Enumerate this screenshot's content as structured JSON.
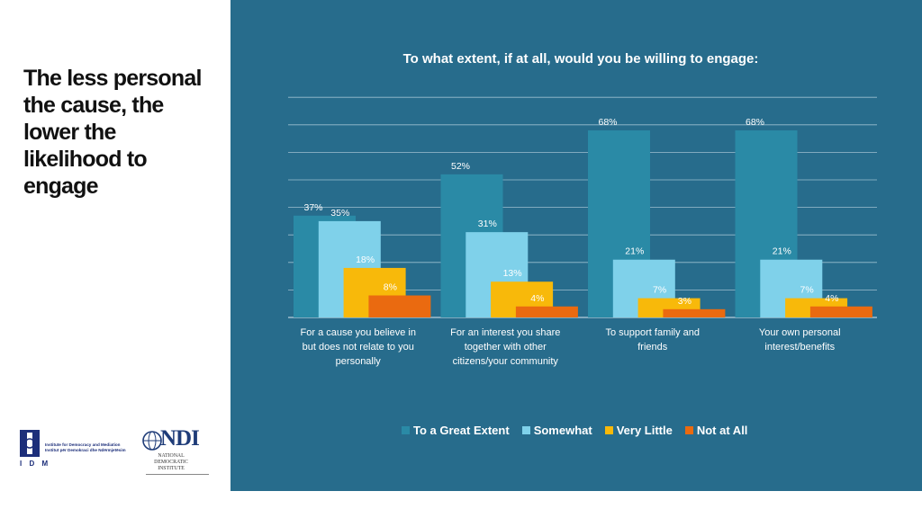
{
  "headline": "The less personal\nthe cause, the\nlower the\nlikelihood to\nengage",
  "logos": {
    "idm_short": "I D M",
    "idm_name": "Institute for Democracy and Mediation\nInstitut për Demokraci dhe Ndërmjetësim",
    "ndi_word": "NDI",
    "ndi_sub": "NATIONAL\nDEMOCRATIC\nINSTITUTE"
  },
  "colors": {
    "panel": "#276c8c",
    "great": "#2a8aa6",
    "somewhat": "#7fd1ea",
    "little": "#f8b90a",
    "notatall": "#ea6a10"
  },
  "chart_data": {
    "type": "bar",
    "title": "To what extent, if at all, would you be willing to engage:",
    "categories": [
      "For a cause you believe in but does not relate to you personally",
      "For an interest you share together with other citizens/your community",
      "To support family and friends",
      "Your own personal interest/benefits"
    ],
    "series": [
      {
        "name": "To a Great Extent",
        "values": [
          37,
          52,
          68,
          68
        ]
      },
      {
        "name": "Somewhat",
        "values": [
          35,
          31,
          21,
          21
        ]
      },
      {
        "name": "Very Little",
        "values": [
          18,
          13,
          7,
          7
        ]
      },
      {
        "name": "Not at All",
        "values": [
          8,
          4,
          3,
          4
        ]
      }
    ],
    "value_suffix": "%",
    "ylim": [
      0,
      80
    ],
    "grid": true,
    "legend": "bottom"
  }
}
